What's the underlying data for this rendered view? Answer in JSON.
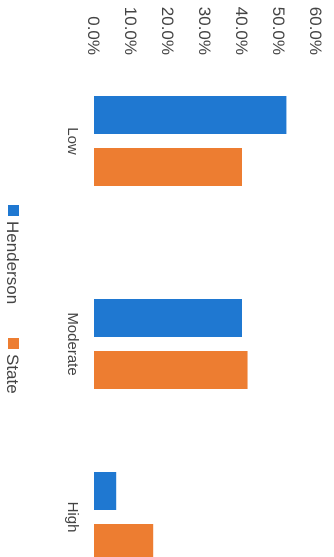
{
  "chart_data": {
    "type": "bar",
    "orientation": "vertical",
    "categories": [
      "Low",
      "Moderate",
      "High"
    ],
    "series": [
      {
        "name": "Henderson",
        "color": "#1f78d1",
        "values": [
          52.0,
          40.0,
          6.0
        ]
      },
      {
        "name": "State",
        "color": "#ed7d31",
        "values": [
          40.0,
          41.5,
          16.0
        ]
      }
    ],
    "y_ticks": [
      "0.0%",
      "10.0%",
      "20.0%",
      "30.0%",
      "40.0%",
      "50.0%",
      "60.0%"
    ],
    "ylim": [
      0,
      60
    ],
    "grid": false,
    "legend": {
      "placement": "bottom"
    },
    "title": "",
    "xlabel": "",
    "ylabel": ""
  }
}
